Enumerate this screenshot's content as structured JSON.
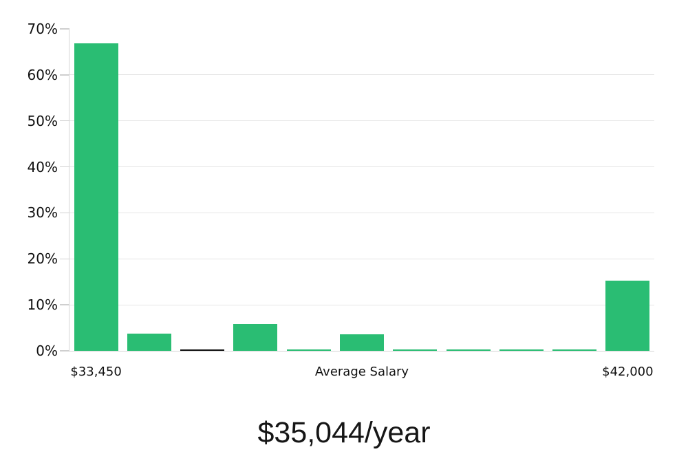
{
  "page": {
    "background": "#ffffff"
  },
  "chart_data": {
    "type": "bar",
    "subtype": "histogram",
    "title": "$35,044/year",
    "xlabel": "Average Salary",
    "ylabel": "",
    "ylim": [
      0,
      70
    ],
    "grid": "horizontal gridlines at 10%-60%, none at 70%",
    "legend": "none",
    "y_ticks": [
      {
        "label": "0%",
        "value": 0
      },
      {
        "label": "10%",
        "value": 10
      },
      {
        "label": "20%",
        "value": 20
      },
      {
        "label": "30%",
        "value": 30
      },
      {
        "label": "40%",
        "value": 40
      },
      {
        "label": "50%",
        "value": 50
      },
      {
        "label": "60%",
        "value": 60
      },
      {
        "label": "70%",
        "value": 70
      }
    ],
    "values": [
      66.9,
      3.8,
      0.3,
      5.8,
      0.3,
      3.6,
      0.3,
      0.3,
      0.3,
      0.3,
      15.2
    ],
    "bar_color": "#2abd73",
    "highlight_index": 2,
    "highlight_color": "#111111",
    "x_tick_labels": [
      {
        "bin": 0,
        "text": "$33,450"
      },
      {
        "bin": 5,
        "text": "Average Salary"
      },
      {
        "bin": 10,
        "text": "$42,000"
      }
    ]
  },
  "colors": {
    "gridline": "#e4e4e4",
    "axis": "#d6d6d6",
    "tick": "#cfcfcf",
    "axis_text": "#111111",
    "title_text": "#161616"
  }
}
